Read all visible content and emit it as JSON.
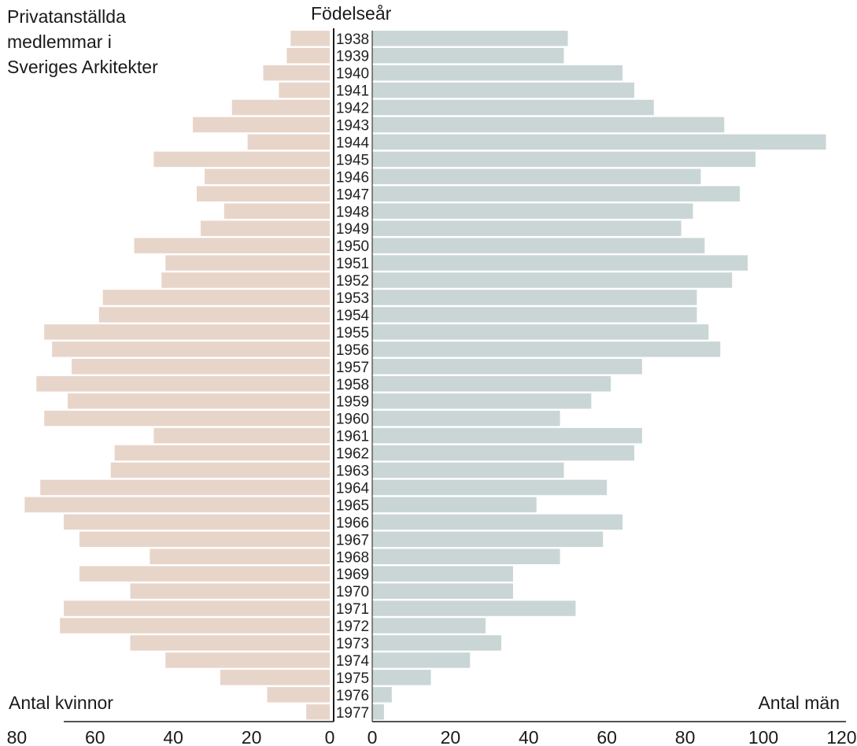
{
  "title_lines": [
    "Privatanställda",
    "medlemmar i",
    "Sveriges Arkitekter"
  ],
  "chart_data": {
    "type": "bar",
    "orientation": "horizontal-pyramid",
    "category_axis_title": "Födelseår",
    "categories": [
      "1938",
      "1939",
      "1940",
      "1941",
      "1942",
      "1943",
      "1944",
      "1945",
      "1946",
      "1947",
      "1948",
      "1949",
      "1950",
      "1951",
      "1952",
      "1953",
      "1954",
      "1955",
      "1956",
      "1957",
      "1958",
      "1959",
      "1960",
      "1961",
      "1962",
      "1963",
      "1964",
      "1965",
      "1966",
      "1967",
      "1968",
      "1969",
      "1970",
      "1971",
      "1972",
      "1973",
      "1974",
      "1975",
      "1976",
      "1977"
    ],
    "left_axis_label": "Antal kvinnor",
    "right_axis_label": "Antal män",
    "series": [
      {
        "name": "Antal kvinnor",
        "side": "left",
        "color": "#e8d5ca",
        "values": [
          10,
          11,
          17,
          13,
          25,
          35,
          21,
          45,
          32,
          34,
          27,
          33,
          50,
          42,
          43,
          58,
          59,
          73,
          71,
          66,
          75,
          67,
          73,
          45,
          55,
          56,
          74,
          78,
          68,
          64,
          46,
          64,
          51,
          68,
          69,
          51,
          42,
          28,
          16,
          6
        ]
      },
      {
        "name": "Antal män",
        "side": "right",
        "color": "#cad6d6",
        "values": [
          50,
          49,
          64,
          67,
          72,
          90,
          116,
          98,
          84,
          94,
          82,
          79,
          85,
          96,
          92,
          83,
          83,
          86,
          89,
          69,
          61,
          56,
          48,
          69,
          67,
          49,
          60,
          42,
          64,
          59,
          48,
          36,
          36,
          52,
          29,
          33,
          25,
          15,
          5,
          3
        ]
      }
    ],
    "left_xlim": [
      0,
      80
    ],
    "right_xlim": [
      0,
      120
    ],
    "left_ticks": [
      "80",
      "60",
      "40",
      "20",
      "0"
    ],
    "left_tick_values": [
      80,
      60,
      40,
      20,
      0
    ],
    "right_ticks": [
      "0",
      "20",
      "40",
      "60",
      "80",
      "100",
      "120"
    ],
    "right_tick_values": [
      0,
      20,
      40,
      60,
      80,
      100,
      120
    ]
  }
}
